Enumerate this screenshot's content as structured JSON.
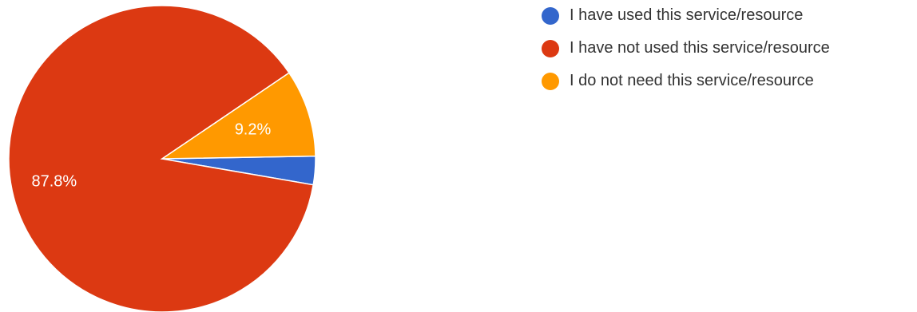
{
  "chart_data": {
    "type": "pie",
    "slices": [
      {
        "label": "I have used this service/resource",
        "value": 3.0,
        "color": "#3366cc",
        "data_label": ""
      },
      {
        "label": "I have not used this service/resource",
        "value": 87.8,
        "color": "#dc3912",
        "data_label": "87.8%"
      },
      {
        "label": "I do not need this service/resource",
        "value": 9.2,
        "color": "#ff9900",
        "data_label": "9.2%"
      }
    ],
    "legend_position": "top-right"
  }
}
